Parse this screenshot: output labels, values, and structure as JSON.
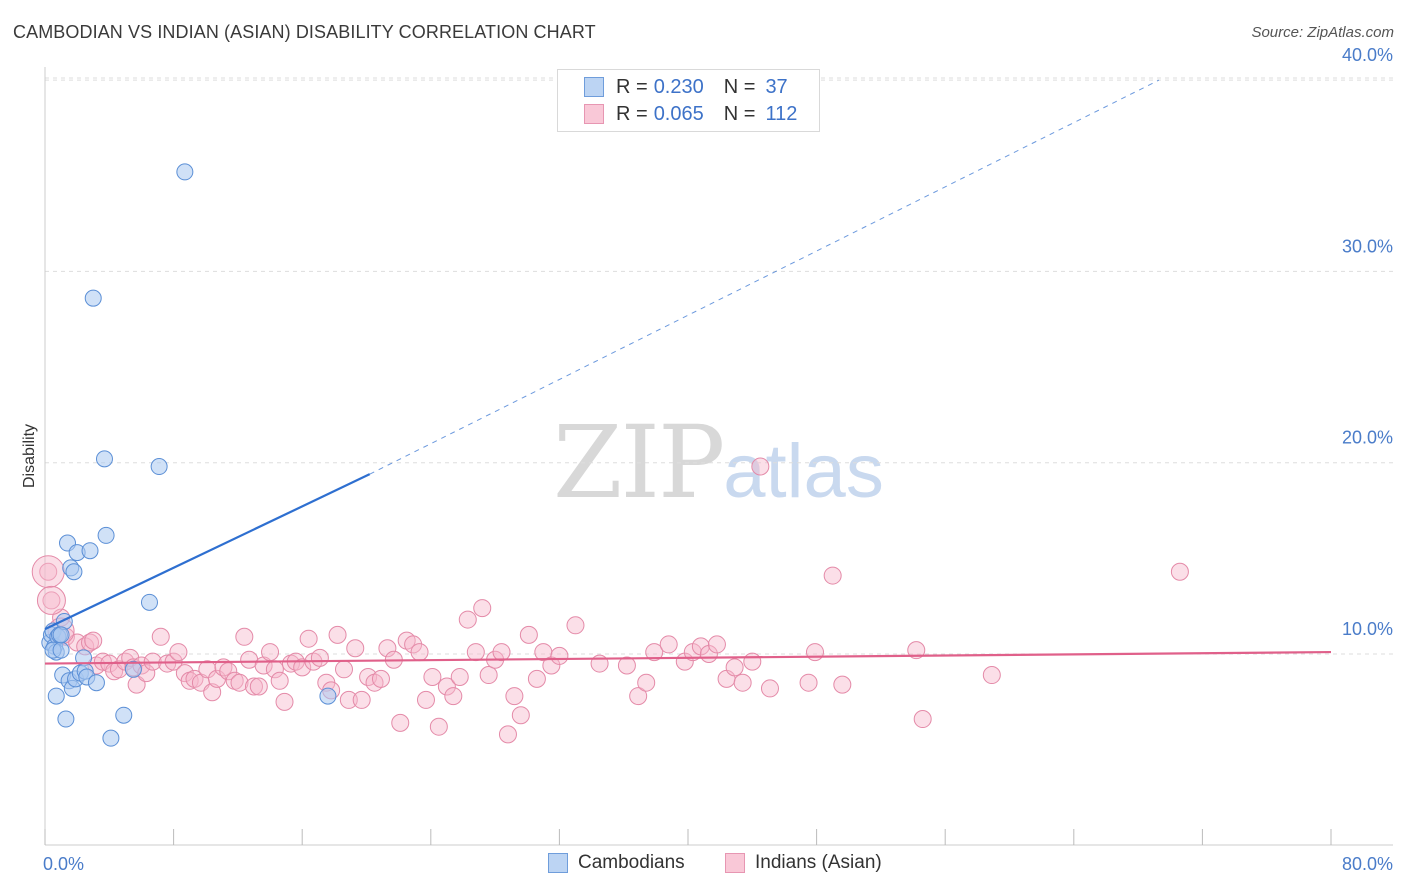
{
  "header": {
    "title": "CAMBODIAN VS INDIAN (ASIAN) DISABILITY CORRELATION CHART",
    "source": "Source: ZipAtlas.com"
  },
  "watermark": {
    "part1": "ZIP",
    "part2": "atlas"
  },
  "legend": {
    "rows": [
      {
        "r_label": "R =",
        "r_value": "0.230",
        "n_label": "N =",
        "n_value": "37"
      },
      {
        "r_label": "R =",
        "r_value": "0.065",
        "n_label": "N =",
        "n_value": "112"
      }
    ]
  },
  "bottom_legend": {
    "cambodians": "Cambodians",
    "indians": "Indians (Asian)"
  },
  "colors": {
    "cambodian_fill": "#a9c8f0",
    "cambodian_stroke": "#5b8fd6",
    "cambodian_line": "#2e6fd0",
    "indian_fill": "#f6b8cc",
    "indian_stroke": "#e48aa8",
    "indian_line": "#e0608a",
    "tick_text": "#4a7cc9",
    "grid": "#dddddd"
  },
  "chart_data": {
    "type": "scatter",
    "title": "CAMBODIAN VS INDIAN (ASIAN) DISABILITY CORRELATION CHART",
    "xlabel": "",
    "ylabel": "Disability",
    "xlim": [
      0,
      80
    ],
    "ylim": [
      0,
      41
    ],
    "x_tick_labels": [
      "0.0%",
      "80.0%"
    ],
    "y_ticks": [
      10,
      20,
      30,
      40
    ],
    "y_tick_labels": [
      "10.0%",
      "20.0%",
      "30.0%",
      "40.0%"
    ],
    "grid": true,
    "legend_position": "top-center",
    "series": [
      {
        "name": "Cambodians",
        "r": 0.23,
        "n": 37,
        "trend": {
          "x0": 0,
          "y0": 11.3,
          "x1": 20.2,
          "y1": 19.4,
          "dashed_to_x": 69.3,
          "dashed_to_y": 40.0
        },
        "points": [
          [
            0.3,
            10.6
          ],
          [
            0.4,
            11.0
          ],
          [
            0.5,
            11.2
          ],
          [
            0.6,
            10.4
          ],
          [
            0.7,
            10.1
          ],
          [
            0.8,
            10.9
          ],
          [
            0.9,
            11.0
          ],
          [
            0.5,
            10.2
          ],
          [
            0.7,
            7.8
          ],
          [
            1.0,
            10.2
          ],
          [
            1.1,
            8.9
          ],
          [
            1.2,
            11.7
          ],
          [
            1.3,
            6.6
          ],
          [
            1.4,
            15.8
          ],
          [
            1.5,
            8.6
          ],
          [
            1.6,
            14.5
          ],
          [
            1.7,
            8.2
          ],
          [
            1.8,
            14.3
          ],
          [
            1.9,
            8.7
          ],
          [
            2.0,
            15.3
          ],
          [
            2.2,
            9.0
          ],
          [
            2.4,
            9.8
          ],
          [
            2.5,
            9.1
          ],
          [
            2.6,
            8.8
          ],
          [
            2.8,
            15.4
          ],
          [
            3.0,
            28.6
          ],
          [
            3.2,
            8.5
          ],
          [
            3.7,
            20.2
          ],
          [
            3.8,
            16.2
          ],
          [
            4.1,
            5.6
          ],
          [
            4.9,
            6.8
          ],
          [
            5.5,
            9.2
          ],
          [
            6.5,
            12.7
          ],
          [
            7.1,
            19.8
          ],
          [
            8.7,
            35.2
          ],
          [
            17.6,
            7.8
          ],
          [
            1.0,
            11.0
          ]
        ]
      },
      {
        "name": "Indians (Asian)",
        "r": 0.065,
        "n": 112,
        "trend": {
          "x0": 0,
          "y0": 9.5,
          "x1": 80,
          "y1": 10.1
        },
        "points": [
          [
            0.2,
            14.3
          ],
          [
            0.4,
            12.8
          ],
          [
            1.0,
            11.9
          ],
          [
            1.3,
            10.9
          ],
          [
            2.0,
            10.6
          ],
          [
            2.5,
            10.4
          ],
          [
            2.8,
            10.6
          ],
          [
            3.0,
            10.7
          ],
          [
            3.2,
            9.4
          ],
          [
            3.6,
            9.6
          ],
          [
            4.0,
            9.5
          ],
          [
            4.3,
            9.1
          ],
          [
            4.6,
            9.2
          ],
          [
            5.0,
            9.6
          ],
          [
            5.3,
            9.8
          ],
          [
            5.5,
            9.3
          ],
          [
            5.7,
            8.4
          ],
          [
            6.0,
            9.4
          ],
          [
            6.3,
            9.0
          ],
          [
            6.7,
            9.6
          ],
          [
            7.2,
            10.9
          ],
          [
            7.6,
            9.5
          ],
          [
            8.0,
            9.6
          ],
          [
            8.3,
            10.1
          ],
          [
            8.7,
            9.0
          ],
          [
            9.0,
            8.6
          ],
          [
            9.3,
            8.7
          ],
          [
            9.7,
            8.5
          ],
          [
            10.1,
            9.2
          ],
          [
            10.4,
            8.0
          ],
          [
            10.7,
            8.7
          ],
          [
            11.1,
            9.3
          ],
          [
            11.4,
            9.1
          ],
          [
            11.8,
            8.6
          ],
          [
            12.1,
            8.5
          ],
          [
            12.4,
            10.9
          ],
          [
            12.7,
            9.7
          ],
          [
            13.0,
            8.3
          ],
          [
            13.3,
            8.3
          ],
          [
            13.6,
            9.4
          ],
          [
            14.0,
            10.1
          ],
          [
            14.3,
            9.2
          ],
          [
            14.6,
            8.6
          ],
          [
            14.9,
            7.5
          ],
          [
            15.3,
            9.5
          ],
          [
            15.6,
            9.6
          ],
          [
            16.0,
            9.3
          ],
          [
            16.4,
            10.8
          ],
          [
            16.7,
            9.6
          ],
          [
            17.1,
            9.8
          ],
          [
            17.5,
            8.5
          ],
          [
            17.8,
            8.1
          ],
          [
            18.2,
            11.0
          ],
          [
            18.6,
            9.2
          ],
          [
            18.9,
            7.6
          ],
          [
            19.3,
            10.3
          ],
          [
            19.7,
            7.6
          ],
          [
            20.1,
            8.8
          ],
          [
            20.5,
            8.5
          ],
          [
            20.9,
            8.7
          ],
          [
            21.3,
            10.3
          ],
          [
            21.7,
            9.7
          ],
          [
            22.1,
            6.4
          ],
          [
            22.5,
            10.7
          ],
          [
            22.9,
            10.5
          ],
          [
            23.3,
            10.1
          ],
          [
            23.7,
            7.6
          ],
          [
            24.1,
            8.8
          ],
          [
            24.5,
            6.2
          ],
          [
            25.0,
            8.3
          ],
          [
            25.4,
            7.8
          ],
          [
            25.8,
            8.8
          ],
          [
            26.3,
            11.8
          ],
          [
            26.8,
            10.1
          ],
          [
            27.2,
            12.4
          ],
          [
            27.6,
            8.9
          ],
          [
            28.0,
            9.7
          ],
          [
            28.4,
            10.1
          ],
          [
            28.8,
            5.8
          ],
          [
            29.2,
            7.8
          ],
          [
            29.6,
            6.8
          ],
          [
            30.1,
            11.0
          ],
          [
            30.6,
            8.7
          ],
          [
            31.0,
            10.1
          ],
          [
            31.5,
            9.4
          ],
          [
            32.0,
            9.9
          ],
          [
            33.0,
            11.5
          ],
          [
            34.5,
            9.5
          ],
          [
            36.2,
            9.4
          ],
          [
            36.9,
            7.8
          ],
          [
            37.4,
            8.5
          ],
          [
            37.9,
            10.1
          ],
          [
            38.8,
            10.5
          ],
          [
            39.8,
            9.6
          ],
          [
            40.3,
            10.1
          ],
          [
            40.8,
            10.4
          ],
          [
            41.3,
            10.0
          ],
          [
            41.8,
            10.5
          ],
          [
            42.4,
            8.7
          ],
          [
            42.9,
            9.3
          ],
          [
            43.4,
            8.5
          ],
          [
            44.0,
            9.6
          ],
          [
            44.5,
            19.8
          ],
          [
            45.1,
            8.2
          ],
          [
            47.5,
            8.5
          ],
          [
            47.9,
            10.1
          ],
          [
            49.0,
            14.1
          ],
          [
            49.6,
            8.4
          ],
          [
            54.2,
            10.2
          ],
          [
            54.6,
            6.6
          ],
          [
            58.9,
            8.9
          ],
          [
            70.6,
            14.3
          ]
        ]
      }
    ]
  }
}
